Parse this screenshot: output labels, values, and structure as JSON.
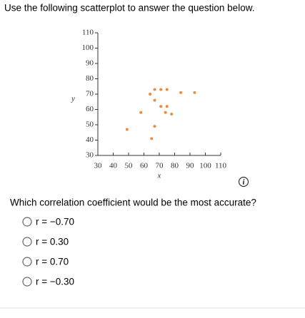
{
  "instruction": "Use the following scatterplot to answer the question below.",
  "chart_data": {
    "type": "scatter",
    "x_label": "x",
    "y_label": "y",
    "color": "#f08a3c",
    "x": [
      67,
      71,
      75,
      64,
      67,
      71,
      75,
      74,
      78,
      84,
      93,
      58,
      67,
      49,
      65
    ],
    "values": [
      73,
      73,
      73,
      70,
      66,
      62,
      62,
      58,
      57,
      71,
      71,
      58,
      49,
      47,
      41
    ],
    "xlim": [
      30,
      110
    ],
    "ylim": [
      30,
      110
    ],
    "xticks": [
      30,
      40,
      50,
      60,
      70,
      80,
      90,
      100,
      110
    ],
    "yticks": [
      30,
      40,
      50,
      60,
      70,
      80,
      90,
      100,
      110
    ]
  },
  "question": "Which correlation coefficient would be the most accurate?",
  "options": [
    "r = −0.70",
    "r = 0.30",
    "r = 0.70",
    "r = −0.30"
  ]
}
